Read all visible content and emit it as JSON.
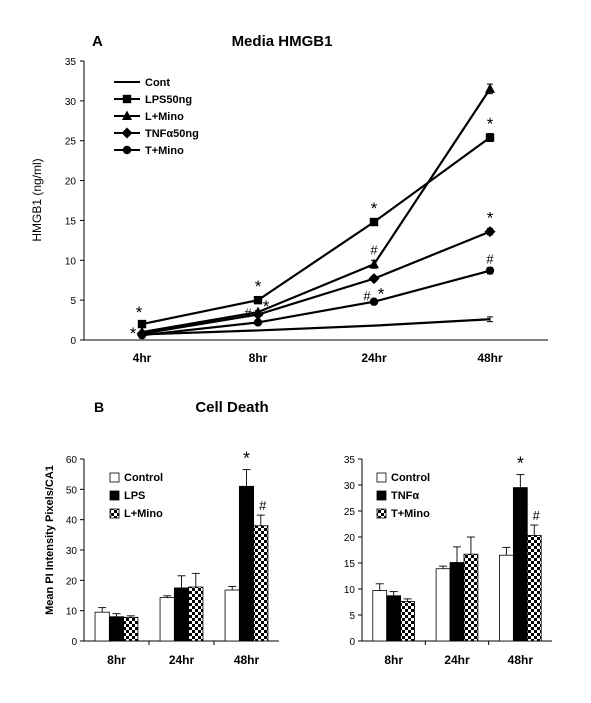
{
  "panels": {
    "a_letter": "A",
    "b_letter": "B"
  },
  "colors": {
    "ink": "#000000",
    "background": "#ffffff",
    "bar_open": "#ffffff",
    "bar_solid": "#000000"
  },
  "chart_data": [
    {
      "type": "line",
      "title": "Media HMGB1",
      "xlabel": "",
      "ylabel": "HMGB1 (ng/ml)",
      "categories": [
        "4hr",
        "8hr",
        "24hr",
        "48hr"
      ],
      "ylim": [
        0,
        35
      ],
      "yticks": [
        0,
        5,
        10,
        15,
        20,
        25,
        30,
        35
      ],
      "grid": false,
      "legend": "top-left",
      "series": [
        {
          "name": "Cont",
          "marker": "none",
          "values": [
            0.7,
            1.2,
            1.8,
            2.6
          ],
          "errors": [
            0,
            0,
            0,
            0.3
          ],
          "annotations": [
            "",
            "",
            "",
            ""
          ]
        },
        {
          "name": "LPS50ng",
          "marker": "square",
          "values": [
            2.0,
            5.0,
            14.8,
            25.4
          ],
          "errors": [
            0.2,
            0.2,
            0.4,
            0.5
          ],
          "annotations": [
            "*",
            "*",
            "*",
            "*"
          ]
        },
        {
          "name": "L+Mino",
          "marker": "triangle",
          "values": [
            1.0,
            3.5,
            9.5,
            31.5
          ],
          "errors": [
            0.1,
            0.2,
            0.5,
            0.6
          ],
          "annotations": [
            "",
            "*",
            "#",
            ""
          ]
        },
        {
          "name": "TNFα50ng",
          "marker": "diamond",
          "values": [
            0.8,
            3.2,
            7.7,
            13.6
          ],
          "errors": [
            0.1,
            0.2,
            0.3,
            0.4
          ],
          "annotations": [
            "",
            "",
            "",
            "*"
          ]
        },
        {
          "name": "T+Mino",
          "marker": "circle",
          "values": [
            0.6,
            2.2,
            4.8,
            8.7
          ],
          "errors": [
            0.1,
            0.2,
            0.3,
            0.4
          ],
          "annotations": [
            "*",
            "#",
            "#",
            "#"
          ]
        }
      ],
      "extra_annotations": [
        {
          "text": "*",
          "category": "24hr",
          "near": "T+Mino"
        }
      ]
    },
    {
      "type": "bar",
      "title": "Cell Death",
      "xlabel": "",
      "ylabel": "Mean PI Intensity Pixels/CA1",
      "categories": [
        "8hr",
        "24hr",
        "48hr"
      ],
      "ylim": [
        0,
        60
      ],
      "yticks": [
        0,
        10,
        20,
        30,
        40,
        50,
        60
      ],
      "grid": false,
      "legend": "top-left",
      "series": [
        {
          "name": "Control",
          "fill": "open",
          "values": [
            9.5,
            14.3,
            16.8
          ],
          "errors": [
            1.5,
            0.6,
            1.2
          ],
          "annotations": [
            "",
            "",
            ""
          ]
        },
        {
          "name": "LPS",
          "fill": "solid",
          "values": [
            8.0,
            17.5,
            51.0
          ],
          "errors": [
            1.0,
            4.0,
            5.5
          ],
          "annotations": [
            "",
            "",
            "*"
          ]
        },
        {
          "name": "L+Mino",
          "fill": "checker",
          "values": [
            7.8,
            17.8,
            38.0
          ],
          "errors": [
            0.5,
            4.5,
            3.5
          ],
          "annotations": [
            "",
            "",
            "#"
          ]
        }
      ]
    },
    {
      "type": "bar",
      "title": "",
      "xlabel": "",
      "ylabel": "",
      "categories": [
        "8hr",
        "24hr",
        "48hr"
      ],
      "ylim": [
        0,
        35
      ],
      "yticks": [
        0,
        5,
        10,
        15,
        20,
        25,
        30,
        35
      ],
      "grid": false,
      "legend": "top-left",
      "series": [
        {
          "name": "Control",
          "fill": "open",
          "values": [
            9.7,
            13.9,
            16.5
          ],
          "errors": [
            1.3,
            0.5,
            1.5
          ],
          "annotations": [
            "",
            "",
            ""
          ]
        },
        {
          "name": "TNFα",
          "fill": "solid",
          "values": [
            8.7,
            15.1,
            29.5
          ],
          "errors": [
            0.8,
            3.0,
            2.5
          ],
          "annotations": [
            "",
            "",
            "*"
          ]
        },
        {
          "name": "T+Mino",
          "fill": "checker",
          "values": [
            7.6,
            16.7,
            20.3
          ],
          "errors": [
            0.5,
            3.3,
            2.0
          ],
          "annotations": [
            "",
            "",
            "#"
          ]
        }
      ]
    }
  ]
}
